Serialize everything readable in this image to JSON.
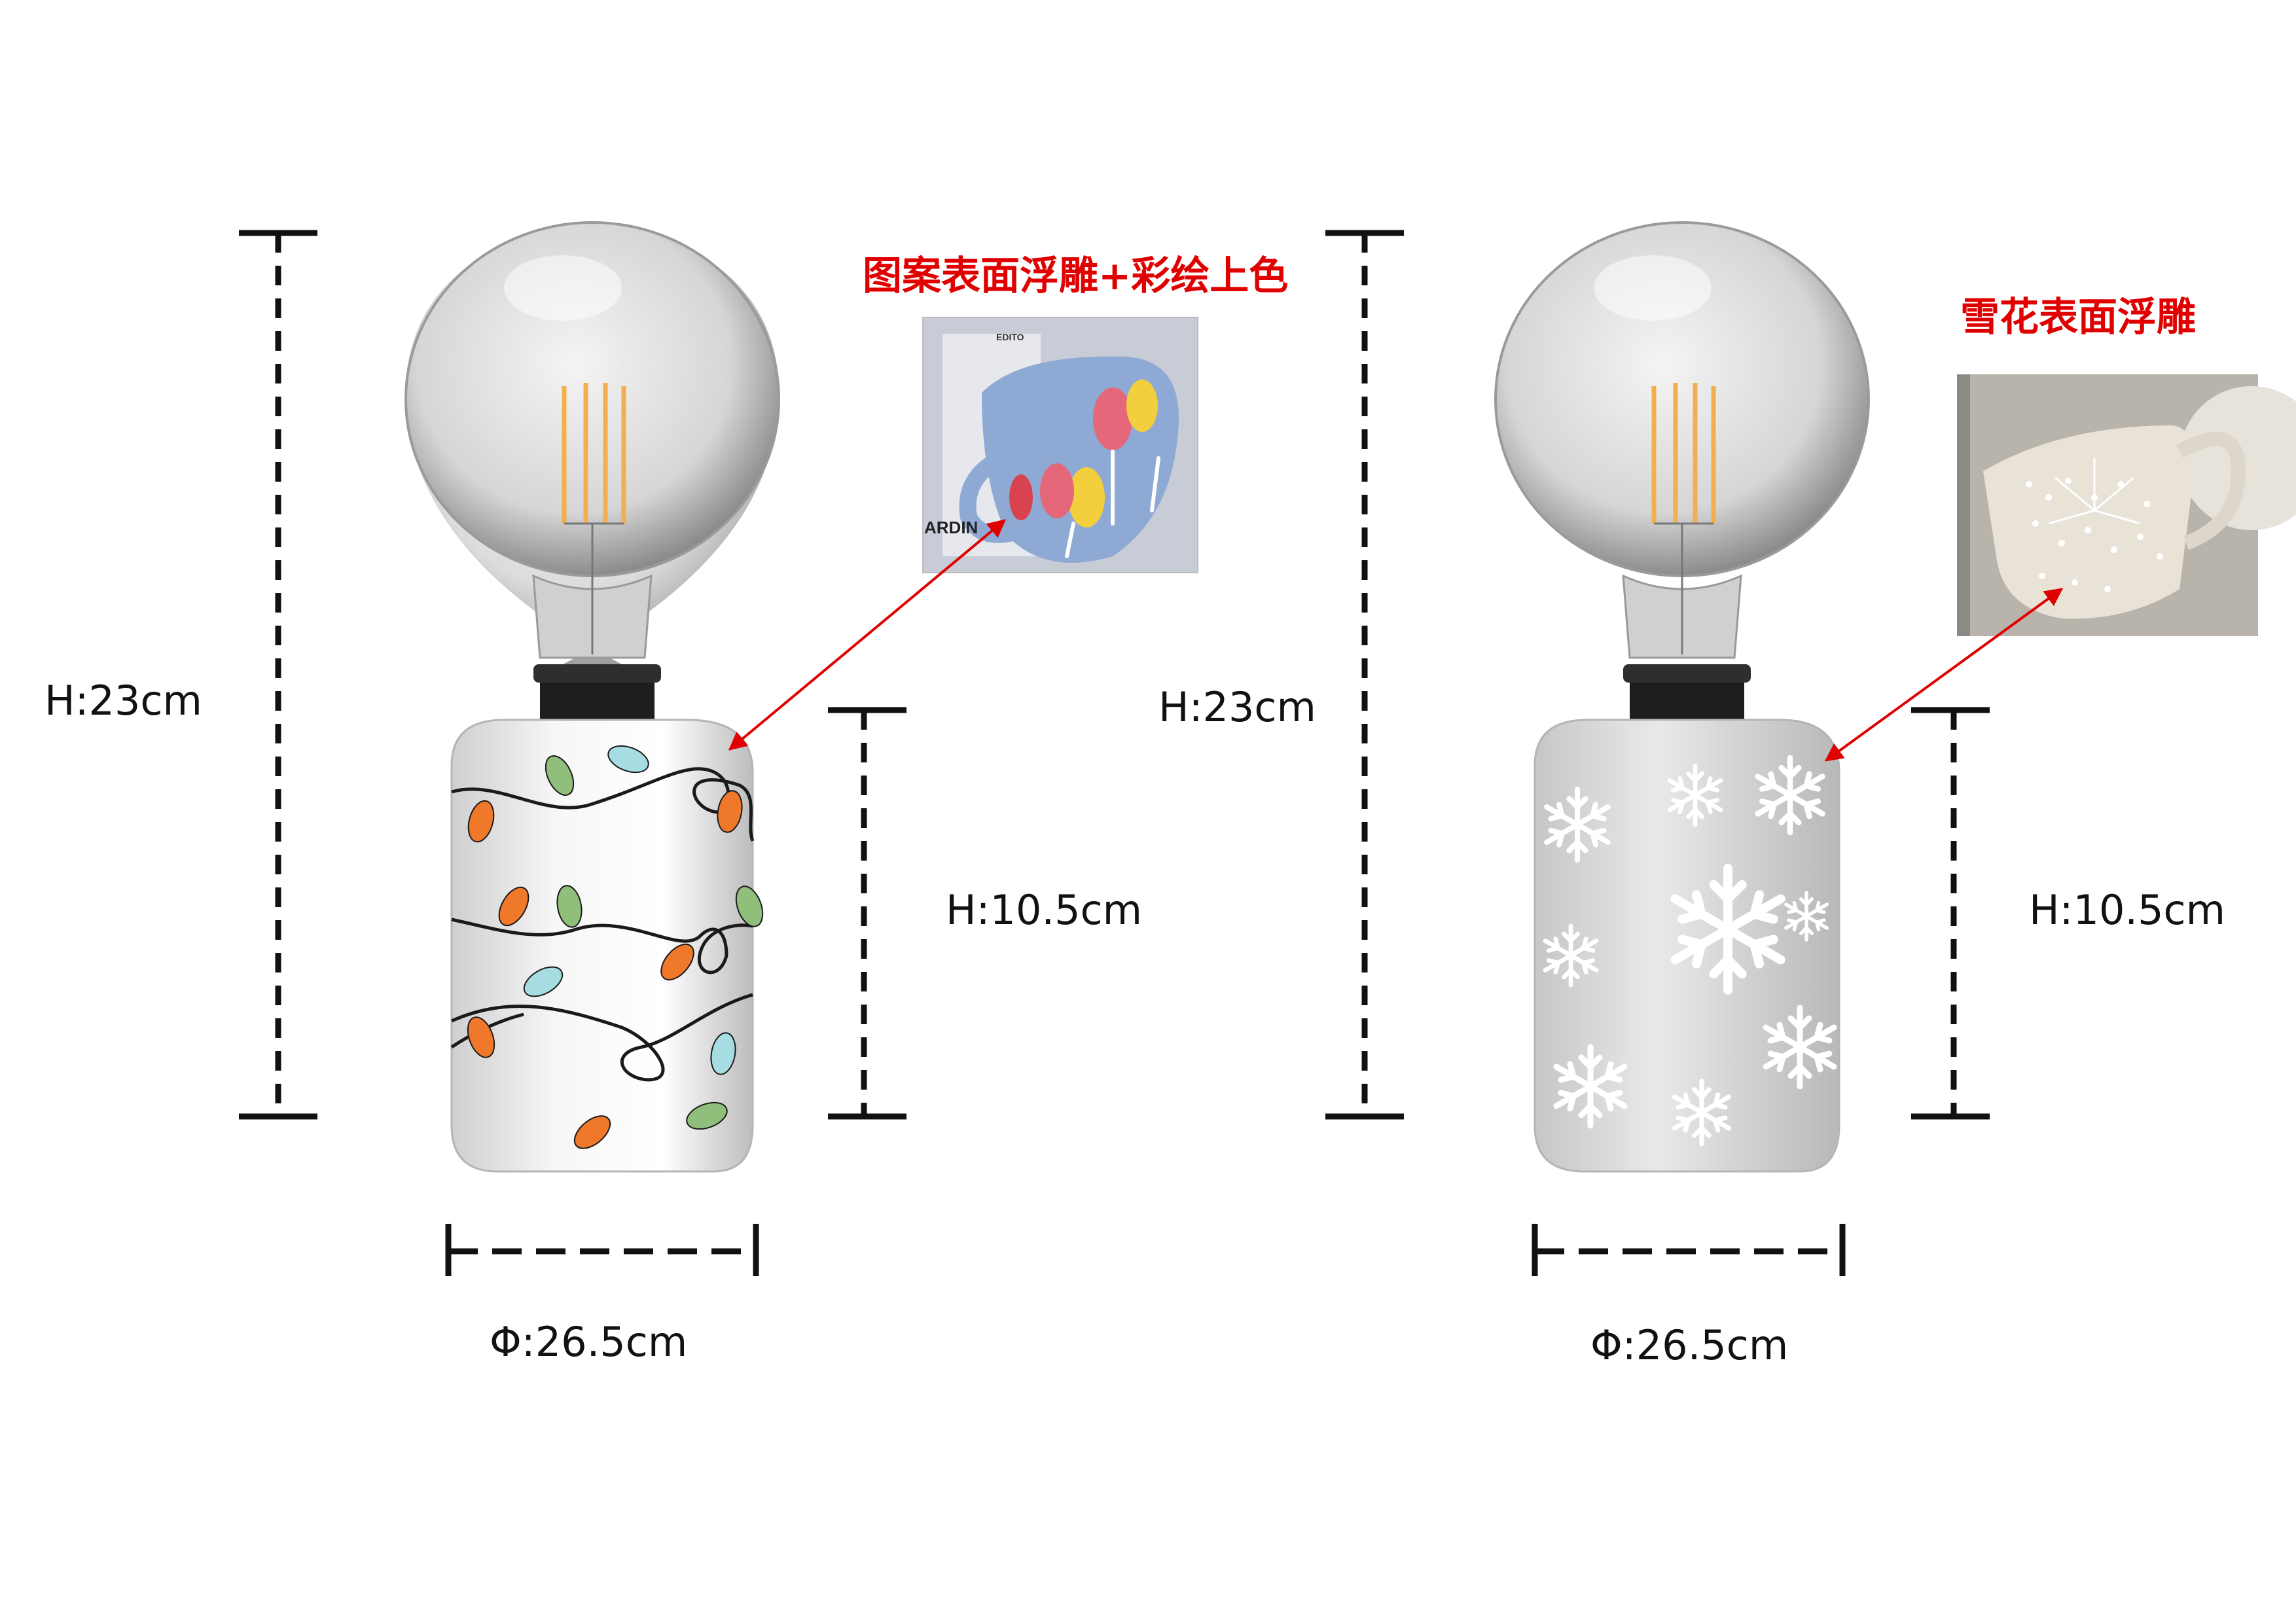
{
  "left": {
    "total_height": "H:23cm",
    "base_height": "H:10.5cm",
    "diameter": "Φ:26.5cm",
    "technique": "图案表面浮雕+彩绘上色",
    "ref_mug_text_top": "EDITO",
    "ref_mug_text_side": "ARDIN",
    "pattern": "christmas-lights"
  },
  "right": {
    "total_height": "H:23cm",
    "base_height": "H:10.5cm",
    "diameter": "Φ:26.5cm",
    "technique": "雪花表面浮雕",
    "pattern": "snowflakes"
  },
  "colors": {
    "annotation_red": "#e00000",
    "dimension_black": "#111111",
    "bulb_orange": "#f0782a",
    "bulb_green": "#8fbf7a",
    "bulb_cyan": "#a6dde3",
    "ref_mug_blue": "#8ea9d4"
  }
}
